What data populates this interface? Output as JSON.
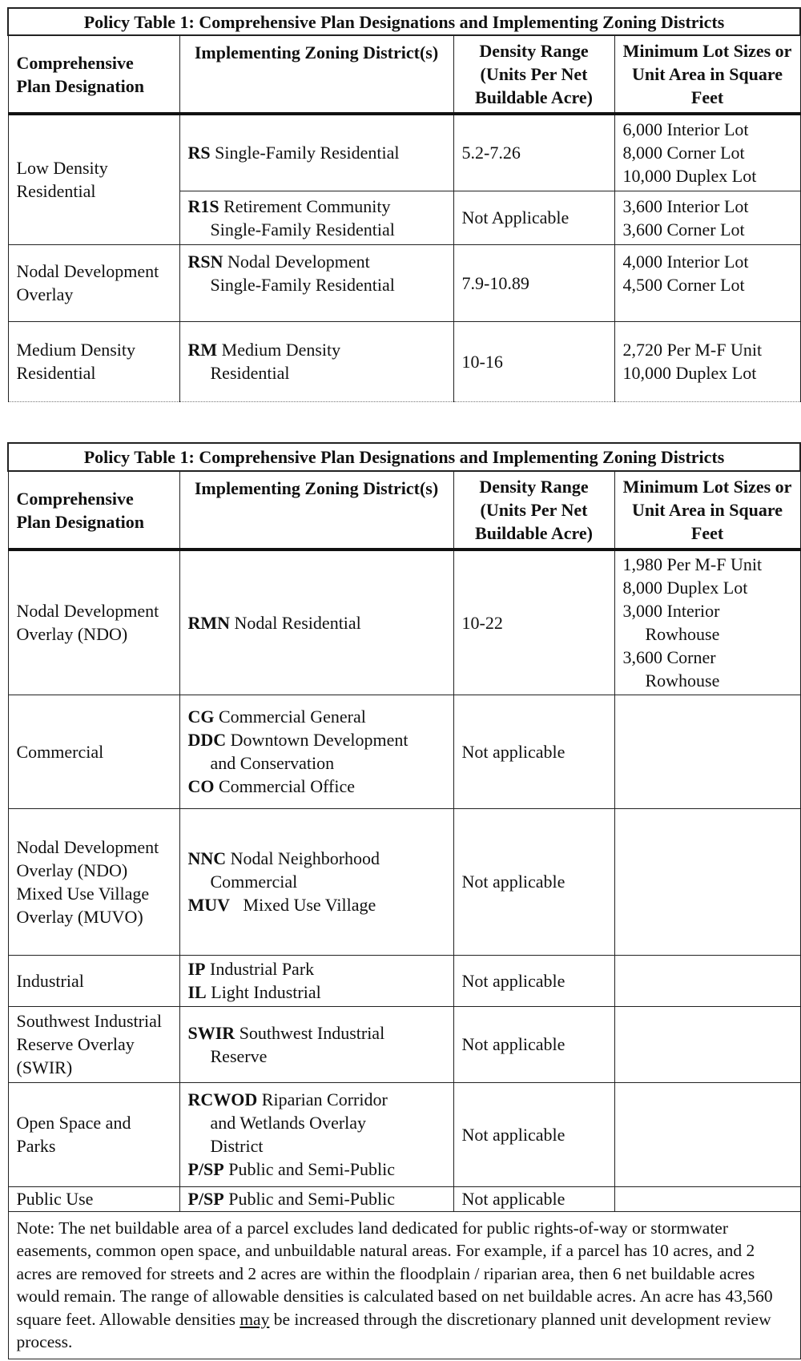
{
  "tables": [
    {
      "title": "Policy Table 1: Comprehensive Plan Designations and Implementing Zoning Districts",
      "headers": [
        "Comprehensive Plan Designation",
        "Implementing Zoning District(s)",
        "Density Range (Units Per Net Buildable Acre)",
        "Minimum Lot Sizes or Unit Area in Square Feet"
      ],
      "rows": [
        {
          "designation": "Low Density Residential",
          "districts": [
            {
              "code": "RS",
              "name": "Single-Family Residential"
            }
          ],
          "density": "5.2-7.26",
          "lots": [
            "6,000 Interior Lot",
            "8,000 Corner Lot",
            "10,000 Duplex Lot"
          ]
        },
        {
          "districts": [
            {
              "code": "R1S",
              "name": "Retirement Community",
              "cont": "Single-Family Residential"
            }
          ],
          "density": "Not Applicable",
          "lots": [
            "3,600 Interior Lot",
            "3,600 Corner Lot"
          ]
        },
        {
          "designation": "Nodal Development Overlay",
          "districts": [
            {
              "code": "RSN",
              "name": "Nodal Development",
              "cont": "Single-Family Residential"
            }
          ],
          "density": "7.9-10.89",
          "lots": [
            "4,000 Interior Lot",
            "4,500 Corner Lot"
          ]
        },
        {
          "designation": "Medium Density Residential",
          "districts": [
            {
              "code": "RM",
              "name": "Medium Density",
              "cont": "Residential"
            }
          ],
          "density": "10-16",
          "lots": [
            "2,720 Per M-F Unit",
            "10,000 Duplex Lot"
          ]
        }
      ]
    },
    {
      "title": "Policy Table 1: Comprehensive Plan Designations and Implementing Zoning Districts",
      "headers": [
        "Comprehensive Plan Designation",
        "Implementing Zoning District(s)",
        "Density Range (Units Per Net Buildable Acre)",
        "Minimum Lot Sizes or Unit Area in Square Feet"
      ],
      "rows": [
        {
          "designation": "Nodal Development Overlay (NDO)",
          "d1code": "RMN",
          "d1name": "Nodal Residential",
          "density": "10-22",
          "lots": [
            "1,980 Per M-F Unit",
            "8,000 Duplex Lot",
            "3,000 Interior",
            "Rowhouse",
            "3,600 Corner",
            "Rowhouse"
          ]
        },
        {
          "designation": "Commercial",
          "d1code": "CG",
          "d1name": "Commercial General",
          "d2code": "DDC",
          "d2name": "Downtown Development",
          "d2cont": "and Conservation",
          "d3code": "CO",
          "d3name": "Commercial Office",
          "density": "Not applicable"
        },
        {
          "designation": "Nodal Development Overlay (NDO) Mixed Use Village Overlay (MUVO)",
          "d1code": "NNC",
          "d1name": "Nodal Neighborhood",
          "d1cont": "Commercial",
          "d2code": "MUV",
          "d2name": "Mixed Use Village",
          "density": "Not applicable"
        },
        {
          "designation": "Industrial",
          "d1code": "IP",
          "d1name": "Industrial Park",
          "d2code": "IL",
          "d2name": "Light Industrial",
          "density": "Not applicable"
        },
        {
          "designation": "Southwest Industrial Reserve Overlay (SWIR)",
          "d1code": "SWIR",
          "d1name": "Southwest Industrial",
          "d1cont": "Reserve",
          "density": "Not applicable"
        },
        {
          "designation": "Open Space and Parks",
          "d1code": "RCWOD",
          "d1name": "Riparian Corridor",
          "d1cont": "and Wetlands Overlay",
          "d1cont2": "District",
          "d2code": "P/SP",
          "d2name": "Public and Semi-Public",
          "density": "Not applicable"
        },
        {
          "designation": "Public Use",
          "d1code": "P/SP",
          "d1name": "Public and Semi-Public",
          "density": "Not applicable"
        }
      ],
      "note": {
        "underlined": "may",
        "text_before": "Note: The net buildable area of a parcel excludes land dedicated for public rights-of-way or stormwater easements, common open space, and unbuildable natural areas.  For example, if a parcel has 10 acres, and 2 acres are removed for streets and 2 acres are within the floodplain / riparian area, then 6 net buildable acres would remain.  The range of allowable densities is calculated based on net buildable acres.  An acre has 43,560 square feet.  Allowable densities ",
        "text_after": " be increased through the discretionary planned unit development review process."
      }
    }
  ]
}
